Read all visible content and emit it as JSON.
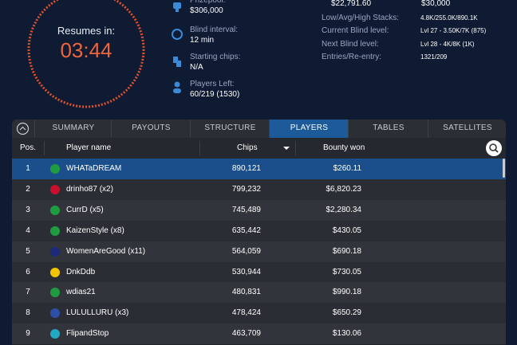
{
  "timer": {
    "label": "Resumes in:",
    "time": "03:44"
  },
  "info": [
    {
      "label": "Prizepool:",
      "value": "$306,000"
    },
    {
      "label": "Blind interval:",
      "value": "12 min"
    },
    {
      "label": "Starting chips:",
      "value": "N/A"
    },
    {
      "label": "Players Left:",
      "value": "60/219 (1530)"
    }
  ],
  "top_values": [
    "$22,791.60",
    "$30,000"
  ],
  "stats": [
    {
      "label": "Low/Avg/High Stacks:",
      "value": "4.8K/255.0K/890.1K"
    },
    {
      "label": "Current Blind level:",
      "value": "Lvl 27 - 3.50K/7K (875)"
    },
    {
      "label": "Next Blind level:",
      "value": "Lvl 28 - 4K/8K (1K)"
    },
    {
      "label": "Entries/Re-entry:",
      "value": "1321/209"
    }
  ],
  "tabs": [
    "SUMMARY",
    "PAYOUTS",
    "STRUCTURE",
    "PLAYERS",
    "TABLES",
    "SATELLITES"
  ],
  "table": {
    "headers": [
      "Pos.",
      "Player name",
      "Chips",
      "Bounty won"
    ],
    "rows": [
      [
        "1",
        "WHATaDREAM",
        "890,121",
        "$260.11"
      ],
      [
        "2",
        "drinho87 (x2)",
        "799,232",
        "$6,820.23"
      ],
      [
        "3",
        "CurrD (x5)",
        "745,489",
        "$2,280.34"
      ],
      [
        "4",
        "KaizenStyle (x8)",
        "635,442",
        "$430.05"
      ],
      [
        "5",
        "WomenAreGood (x11)",
        "564,059",
        "$690.18"
      ],
      [
        "6",
        "DnkDdb",
        "530,944",
        "$730.05"
      ],
      [
        "7",
        "wdias21",
        "480,831",
        "$990.18"
      ],
      [
        "8",
        "LULULLURU (x3)",
        "478,424",
        "$650.29"
      ],
      [
        "9",
        "FlipandStop",
        "463,709",
        "$130.06"
      ]
    ]
  }
}
